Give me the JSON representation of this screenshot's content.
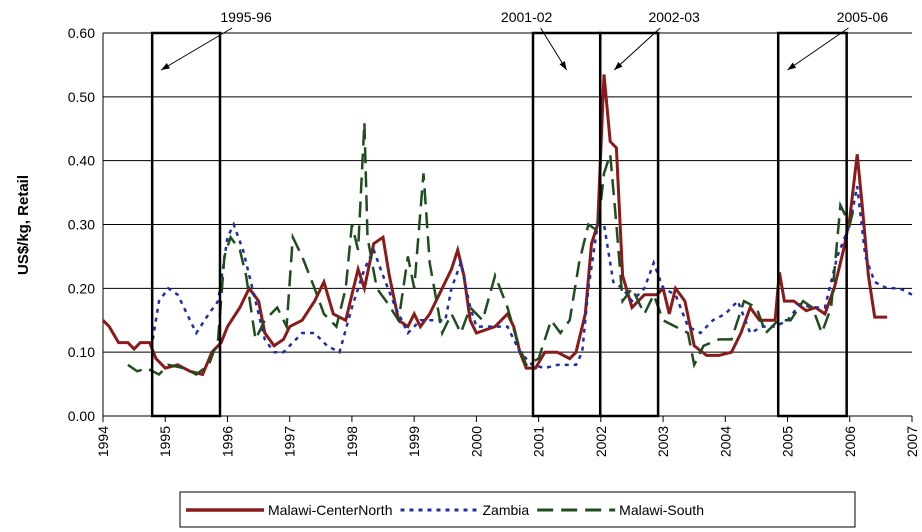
{
  "chart_data": {
    "type": "line",
    "ylabel": "US$/kg, Retail",
    "xlim": [
      1994,
      2007
    ],
    "xticks": [
      1994,
      1995,
      1996,
      1997,
      1998,
      1999,
      2000,
      2001,
      2002,
      2003,
      2004,
      2005,
      2006,
      2007
    ],
    "ylim": [
      0,
      0.6
    ],
    "yticks": [
      {
        "value": 0,
        "label": "0.00"
      },
      {
        "value": 0.1,
        "label": "0.10"
      },
      {
        "value": 0.2,
        "label": "0.20"
      },
      {
        "value": 0.3,
        "label": "0.30"
      },
      {
        "value": 0.4,
        "label": "0.40"
      },
      {
        "value": 0.5,
        "label": "0.50"
      },
      {
        "value": 0.6,
        "label": "0.60"
      }
    ],
    "grid": true,
    "legend": "bottom",
    "annotations": [
      {
        "text": "1995-96",
        "x0": 1994.79,
        "x1": 1995.88
      },
      {
        "text": "2001-02",
        "x0": 2000.91,
        "x1": 2001.99
      },
      {
        "text": "2002-03",
        "x0": 2001.99,
        "x1": 2002.92
      },
      {
        "text": "2005-06",
        "x0": 2004.85,
        "x1": 2005.95
      }
    ],
    "series": [
      {
        "name": "Malawi-CenterNorth",
        "color": "#8b1a1a",
        "style": "solid",
        "x": [
          1994.0,
          1994.1,
          1994.25,
          1994.4,
          1994.5,
          1994.6,
          1994.75,
          1994.85,
          1995.0,
          1995.2,
          1995.4,
          1995.6,
          1995.75,
          1995.9,
          1996.0,
          1996.2,
          1996.35,
          1996.5,
          1996.6,
          1996.75,
          1996.9,
          1997.0,
          1997.2,
          1997.4,
          1997.55,
          1997.7,
          1997.9,
          1998.0,
          1998.1,
          1998.2,
          1998.35,
          1998.5,
          1998.6,
          1998.75,
          1998.9,
          1999.0,
          1999.1,
          1999.25,
          1999.45,
          1999.6,
          1999.7,
          1999.8,
          1999.9,
          2000.0,
          2000.3,
          2000.5,
          2000.6,
          2000.7,
          2000.8,
          2000.95,
          2001.1,
          2001.3,
          2001.5,
          2001.6,
          2001.75,
          2001.85,
          2001.95,
          2002.05,
          2002.15,
          2002.25,
          2002.35,
          2002.5,
          2002.7,
          2002.9,
          2003.0,
          2003.1,
          2003.2,
          2003.35,
          2003.5,
          2003.7,
          2003.9,
          2004.1,
          2004.25,
          2004.4,
          2004.55,
          2004.7,
          2004.8,
          2004.87,
          2004.95,
          2005.1,
          2005.3,
          2005.45,
          2005.6,
          2005.75,
          2005.9,
          2006.0,
          2006.12,
          2006.2,
          2006.3,
          2006.4,
          2006.6
        ],
        "values": [
          0.15,
          0.14,
          0.115,
          0.115,
          0.105,
          0.115,
          0.115,
          0.09,
          0.075,
          0.08,
          0.07,
          0.065,
          0.1,
          0.115,
          0.14,
          0.17,
          0.2,
          0.18,
          0.13,
          0.11,
          0.12,
          0.14,
          0.15,
          0.18,
          0.21,
          0.16,
          0.15,
          0.19,
          0.23,
          0.2,
          0.27,
          0.28,
          0.22,
          0.15,
          0.14,
          0.16,
          0.14,
          0.16,
          0.2,
          0.23,
          0.26,
          0.22,
          0.15,
          0.13,
          0.14,
          0.16,
          0.14,
          0.1,
          0.075,
          0.075,
          0.1,
          0.1,
          0.09,
          0.1,
          0.16,
          0.27,
          0.3,
          0.535,
          0.43,
          0.42,
          0.22,
          0.17,
          0.19,
          0.19,
          0.2,
          0.16,
          0.2,
          0.18,
          0.11,
          0.095,
          0.095,
          0.1,
          0.13,
          0.17,
          0.15,
          0.15,
          0.15,
          0.225,
          0.18,
          0.18,
          0.165,
          0.17,
          0.16,
          0.2,
          0.26,
          0.31,
          0.41,
          0.33,
          0.22,
          0.155,
          0.155
        ]
      },
      {
        "name": "Zambia",
        "color": "#1f2fa8",
        "style": "dotted",
        "x": [
          1994.8,
          1994.9,
          1995.05,
          1995.2,
          1995.35,
          1995.5,
          1995.7,
          1995.85,
          1996.0,
          1996.1,
          1996.25,
          1996.4,
          1996.6,
          1996.75,
          1996.9,
          1997.0,
          1997.2,
          1997.4,
          1997.6,
          1997.8,
          1998.0,
          1998.2,
          1998.35,
          1998.5,
          1998.7,
          1998.9,
          1999.1,
          1999.3,
          1999.5,
          1999.6,
          1999.75,
          1999.9,
          2000.0,
          2000.3,
          2000.5,
          2000.7,
          2000.9,
          2001.1,
          2001.3,
          2001.5,
          2001.6,
          2001.7,
          2001.8,
          2001.95,
          2002.05,
          2002.2,
          2002.35,
          2002.5,
          2002.7,
          2002.85,
          2003.0,
          2003.2,
          2003.4,
          2003.6,
          2003.8,
          2004.0,
          2004.2,
          2004.4,
          2004.6,
          2004.8,
          2005.0,
          2005.2,
          2005.4,
          2005.6,
          2005.8,
          2006.0,
          2006.12,
          2006.25,
          2006.4,
          2006.6,
          2006.8,
          2007.0
        ],
        "values": [
          0.12,
          0.18,
          0.2,
          0.19,
          0.16,
          0.13,
          0.16,
          0.18,
          0.28,
          0.3,
          0.26,
          0.2,
          0.12,
          0.1,
          0.1,
          0.11,
          0.13,
          0.13,
          0.11,
          0.1,
          0.17,
          0.23,
          0.26,
          0.22,
          0.17,
          0.13,
          0.15,
          0.15,
          0.15,
          0.2,
          0.24,
          0.17,
          0.14,
          0.14,
          0.14,
          0.1,
          0.08,
          0.075,
          0.08,
          0.08,
          0.08,
          0.1,
          0.2,
          0.3,
          0.3,
          0.21,
          0.2,
          0.18,
          0.2,
          0.24,
          0.2,
          0.19,
          0.14,
          0.13,
          0.15,
          0.16,
          0.18,
          0.13,
          0.14,
          0.14,
          0.15,
          0.175,
          0.17,
          0.17,
          0.25,
          0.3,
          0.36,
          0.25,
          0.21,
          0.2,
          0.2,
          0.19
        ]
      },
      {
        "name": "Malawi-South",
        "color": "#1e4d1e",
        "style": "dashed",
        "x": [
          1994.4,
          1994.55,
          1994.7,
          1994.9,
          1995.05,
          1995.3,
          1995.5,
          1995.7,
          1995.85,
          1995.95,
          1996.05,
          1996.2,
          1996.3,
          1996.45,
          1996.6,
          1996.8,
          1996.95,
          1997.05,
          1997.2,
          1997.4,
          1997.55,
          1997.75,
          1997.9,
          1998.0,
          1998.1,
          1998.2,
          1998.25,
          1998.4,
          1998.55,
          1998.75,
          1998.9,
          1999.0,
          1999.15,
          1999.25,
          1999.45,
          1999.6,
          1999.75,
          1999.9,
          2000.1,
          2000.3,
          2000.5,
          2000.65,
          2000.8,
          2001.0,
          2001.2,
          2001.35,
          2001.5,
          2001.65,
          2001.8,
          2001.95,
          2002.05,
          2002.15,
          2002.25,
          2002.35,
          2002.5,
          2002.7,
          2002.85,
          2003.0,
          2003.2,
          2003.4,
          2003.5,
          2003.65,
          2003.9,
          2004.1,
          2004.3,
          2004.5,
          2004.65,
          2004.85,
          2005.05,
          2005.25,
          2005.4,
          2005.55,
          2005.7,
          2005.85,
          2006.0,
          2006.05
        ],
        "values": [
          0.08,
          0.07,
          0.075,
          0.065,
          0.08,
          0.075,
          0.065,
          0.08,
          0.12,
          0.25,
          0.28,
          0.26,
          0.22,
          0.12,
          0.15,
          0.17,
          0.14,
          0.28,
          0.25,
          0.2,
          0.16,
          0.14,
          0.2,
          0.3,
          0.26,
          0.46,
          0.28,
          0.2,
          0.18,
          0.15,
          0.25,
          0.2,
          0.38,
          0.24,
          0.13,
          0.16,
          0.13,
          0.17,
          0.15,
          0.22,
          0.17,
          0.12,
          0.08,
          0.09,
          0.15,
          0.13,
          0.15,
          0.24,
          0.3,
          0.29,
          0.38,
          0.41,
          0.3,
          0.18,
          0.2,
          0.16,
          0.19,
          0.15,
          0.14,
          0.13,
          0.08,
          0.11,
          0.12,
          0.12,
          0.18,
          0.17,
          0.13,
          0.15,
          0.15,
          0.18,
          0.17,
          0.13,
          0.17,
          0.33,
          0.3,
          0.32
        ]
      }
    ]
  }
}
